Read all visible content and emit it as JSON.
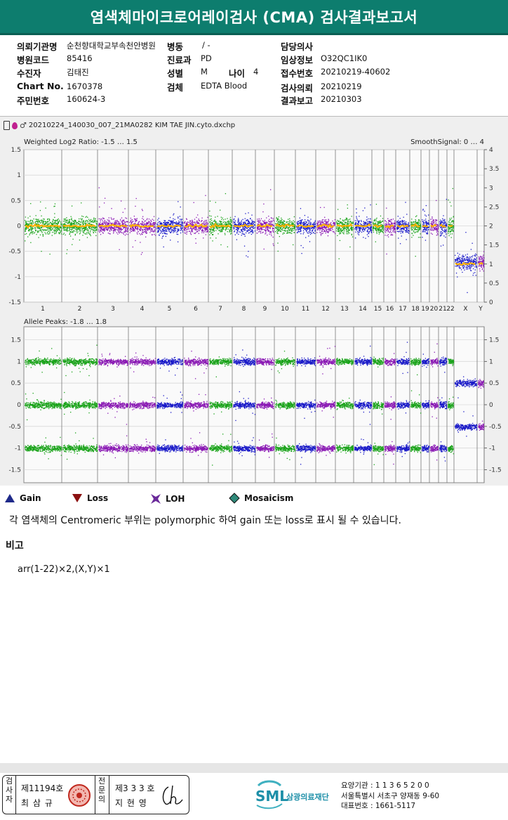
{
  "header": {
    "title": "염색체마이크로어레이검사 (CMA) 검사결과보고서"
  },
  "info": {
    "req_org_label": "의뢰기관명",
    "req_org_value": "순천향대학교부속천안병원",
    "ward_label": "병동",
    "ward_value": "/ -",
    "doctor_label": "담당의사",
    "doctor_value": "",
    "hosp_code_label": "병원코드",
    "hosp_code_value": "85416",
    "dept_label": "진료과",
    "dept_value": "PD",
    "clinical_label": "임상정보",
    "clinical_value": "O32QC1IK0",
    "patient_label": "수진자",
    "patient_value": "김태진",
    "sex_label": "성별",
    "sex_value": "M",
    "age_label": "나이",
    "age_value": "4",
    "receipt_label": "접수번호",
    "receipt_value": "20210219-40602",
    "chart_label": "Chart No.",
    "chart_value": "1670378",
    "specimen_label": "검체",
    "specimen_value": "EDTA Blood",
    "test_req_label": "검사의뢰",
    "test_req_value": "20210219",
    "rrn_label": "주민번호",
    "rrn_value": "160624-3",
    "report_label": "결과보고",
    "report_value": "20210303"
  },
  "chart_data": [
    {
      "type": "scatter",
      "title": "Weighted Log2 Ratio: -1.5 … 1.5",
      "right_label": "SmoothSignal: 0 … 4",
      "ylim": [
        -1.5,
        1.5
      ],
      "yticks": [
        1.5,
        1,
        0.5,
        0,
        -0.5,
        -1,
        -1.5
      ],
      "y2lim": [
        0,
        4
      ],
      "y2ticks": [
        4,
        3.5,
        3,
        2.5,
        2,
        1.5,
        1,
        0.5,
        0
      ],
      "categories": [
        "1",
        "2",
        "3",
        "4",
        "5",
        "6",
        "7",
        "8",
        "9",
        "10",
        "11",
        "12",
        "13",
        "14",
        "15",
        "16",
        "17",
        "18",
        "19",
        "20",
        "21",
        "22",
        "X",
        "Y"
      ],
      "band_values": [
        0,
        0,
        0,
        0,
        0,
        0,
        0,
        0,
        0,
        0,
        0,
        0,
        0,
        0,
        0,
        0,
        0,
        0,
        0,
        0,
        0,
        0,
        -0.7,
        -0.7
      ],
      "smooth_values": [
        2,
        2,
        2,
        2,
        2,
        2,
        2,
        2,
        2,
        2,
        2,
        2,
        2,
        2,
        2,
        2,
        2,
        2,
        2,
        2,
        2,
        2,
        1,
        1
      ],
      "grid": true
    },
    {
      "type": "scatter",
      "title": "Allele Peaks: -1.8 … 1.8",
      "ylim": [
        -1.8,
        1.8
      ],
      "yticks": [
        1.5,
        1,
        0.5,
        0,
        -0.5,
        -1,
        -1.5
      ],
      "y2ticks": [
        1.5,
        1,
        0.5,
        0,
        -0.5,
        -1,
        -1.5
      ],
      "categories": [
        "1",
        "2",
        "3",
        "4",
        "5",
        "6",
        "7",
        "8",
        "9",
        "10",
        "11",
        "12",
        "13",
        "14",
        "15",
        "16",
        "17",
        "18",
        "19",
        "20",
        "21",
        "22",
        "X",
        "Y"
      ],
      "band_values_autosome": [
        1,
        0,
        -1
      ],
      "band_values_sex": [
        0.5,
        -0.5
      ],
      "grid": true
    }
  ],
  "chart": {
    "file_name": "20210224_140030_007_21MA0282 KIM TAE JIN.cyto.dxchp",
    "colors": {
      "green": "#19a319",
      "blue": "#1919c8",
      "purple": "#8a19b4",
      "orange": "#ffb000"
    }
  },
  "legend": {
    "gain": "Gain",
    "loss": "Loss",
    "loh": "LOH",
    "mosaicism": "Mosaicism",
    "gain_color": "#1f2a8a",
    "loss_color": "#8b1010",
    "loh_color": "#6a2a9a",
    "mosaic_color": "#2f8a7a"
  },
  "note": "각 염색체의 Centromeric 부위는 polymorphic 하여 gain 또는 loss로 표시 될 수 있습니다.",
  "remark_title": "비고",
  "remark_text": "arr(1-22)×2,(X,Y)×1",
  "stamp": {
    "inspector_label": "검사자",
    "inspector_no": "제11194호",
    "inspector_name": "최 삼 규",
    "specialist_label": "전문의",
    "specialist_no": "제3 3 3 호",
    "specialist_name": "지 현 영"
  },
  "org": {
    "logo": "SML",
    "name": "삼광의료재단",
    "code": "요양기관 : 1 1 3 6 5 2 0 0",
    "address": "서울특별시 서초구 양재동 9-60",
    "phone": "대표번호 : 1661-5117"
  }
}
